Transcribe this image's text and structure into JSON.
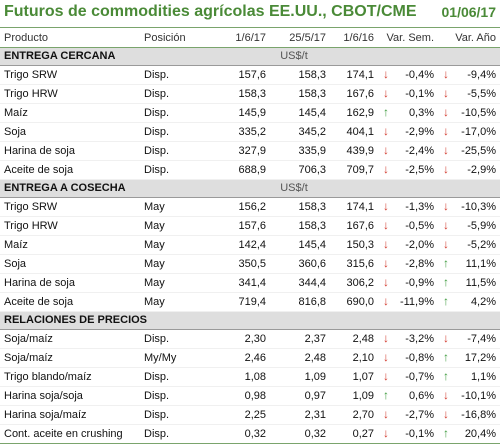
{
  "title": "Futuros de commodities agrícolas EE.UU., CBOT/CME",
  "date": "01/06/17",
  "columns": [
    "Producto",
    "Posición",
    "1/6/17",
    "25/5/17",
    "1/6/16",
    "Var. Sem.",
    "Var. Año"
  ],
  "sections": [
    {
      "name": "ENTREGA CERCANA",
      "unit": "US$/t",
      "rows": [
        {
          "product": "Trigo SRW",
          "position": "Disp.",
          "c1": "157,6",
          "c2": "158,3",
          "c3": "174,1",
          "a1": "down",
          "v1": "-0,4%",
          "a2": "down",
          "v2": "-9,4%"
        },
        {
          "product": "Trigo HRW",
          "position": "Disp.",
          "c1": "158,3",
          "c2": "158,3",
          "c3": "167,6",
          "a1": "down",
          "v1": "-0,1%",
          "a2": "down",
          "v2": "-5,5%"
        },
        {
          "product": "Maíz",
          "position": "Disp.",
          "c1": "145,9",
          "c2": "145,4",
          "c3": "162,9",
          "a1": "up",
          "v1": "0,3%",
          "a2": "down",
          "v2": "-10,5%"
        },
        {
          "product": "Soja",
          "position": "Disp.",
          "c1": "335,2",
          "c2": "345,2",
          "c3": "404,1",
          "a1": "down",
          "v1": "-2,9%",
          "a2": "down",
          "v2": "-17,0%"
        },
        {
          "product": "Harina de soja",
          "position": "Disp.",
          "c1": "327,9",
          "c2": "335,9",
          "c3": "439,9",
          "a1": "down",
          "v1": "-2,4%",
          "a2": "down",
          "v2": "-25,5%"
        },
        {
          "product": "Aceite de soja",
          "position": "Disp.",
          "c1": "688,9",
          "c2": "706,3",
          "c3": "709,7",
          "a1": "down",
          "v1": "-2,5%",
          "a2": "down",
          "v2": "-2,9%"
        }
      ]
    },
    {
      "name": "ENTREGA A COSECHA",
      "unit": "US$/t",
      "rows": [
        {
          "product": "Trigo SRW",
          "position": "May",
          "c1": "156,2",
          "c2": "158,3",
          "c3": "174,1",
          "a1": "down",
          "v1": "-1,3%",
          "a2": "down",
          "v2": "-10,3%"
        },
        {
          "product": "Trigo HRW",
          "position": "May",
          "c1": "157,6",
          "c2": "158,3",
          "c3": "167,6",
          "a1": "down",
          "v1": "-0,5%",
          "a2": "down",
          "v2": "-5,9%"
        },
        {
          "product": "Maíz",
          "position": "May",
          "c1": "142,4",
          "c2": "145,4",
          "c3": "150,3",
          "a1": "down",
          "v1": "-2,0%",
          "a2": "down",
          "v2": "-5,2%"
        },
        {
          "product": "Soja",
          "position": "May",
          "c1": "350,5",
          "c2": "360,6",
          "c3": "315,6",
          "a1": "down",
          "v1": "-2,8%",
          "a2": "up",
          "v2": "11,1%"
        },
        {
          "product": "Harina de soja",
          "position": "May",
          "c1": "341,4",
          "c2": "344,4",
          "c3": "306,2",
          "a1": "down",
          "v1": "-0,9%",
          "a2": "up",
          "v2": "11,5%"
        },
        {
          "product": "Aceite de soja",
          "position": "May",
          "c1": "719,4",
          "c2": "816,8",
          "c3": "690,0",
          "a1": "down",
          "v1": "-11,9%",
          "a2": "up",
          "v2": "4,2%"
        }
      ]
    },
    {
      "name": "RELACIONES DE PRECIOS",
      "unit": "",
      "rows": [
        {
          "product": "Soja/maíz",
          "position": "Disp.",
          "c1": "2,30",
          "c2": "2,37",
          "c3": "2,48",
          "a1": "down",
          "v1": "-3,2%",
          "a2": "down",
          "v2": "-7,4%"
        },
        {
          "product": "Soja/maíz",
          "position": "My/My",
          "c1": "2,46",
          "a0": "",
          "c2": "2,48",
          "c3": "2,10",
          "a1": "down",
          "v1": "-0,8%",
          "a2": "up",
          "v2": "17,2%"
        },
        {
          "product": "Trigo blando/maíz",
          "position": "Disp.",
          "c1": "1,08",
          "c2": "1,09",
          "c3": "1,07",
          "a1": "down",
          "v1": "-0,7%",
          "a2": "up",
          "v2": "1,1%"
        },
        {
          "product": "Harina soja/soja",
          "position": "Disp.",
          "c1": "0,98",
          "c2": "0,97",
          "c3": "1,09",
          "a1": "up",
          "v1": "0,6%",
          "a2": "down",
          "v2": "-10,1%"
        },
        {
          "product": "Harina soja/maíz",
          "position": "Disp.",
          "c1": "2,25",
          "c2": "2,31",
          "c3": "2,70",
          "a1": "down",
          "v1": "-2,7%",
          "a2": "down",
          "v2": "-16,8%"
        },
        {
          "product": "Cont. aceite en crushing",
          "position": "Disp.",
          "c1": "0,32",
          "c2": "0,32",
          "c3": "0,27",
          "a1": "down",
          "v1": "-0,1%",
          "a2": "up",
          "v2": "20,4%"
        }
      ]
    }
  ],
  "colors": {
    "title": "#4a8a37",
    "up_arrow": "#3d9a3d",
    "down_arrow": "#d23a2e",
    "section_bg": "#dedede"
  },
  "icons": {
    "up": "arrow-up-icon",
    "down": "arrow-down-icon"
  }
}
